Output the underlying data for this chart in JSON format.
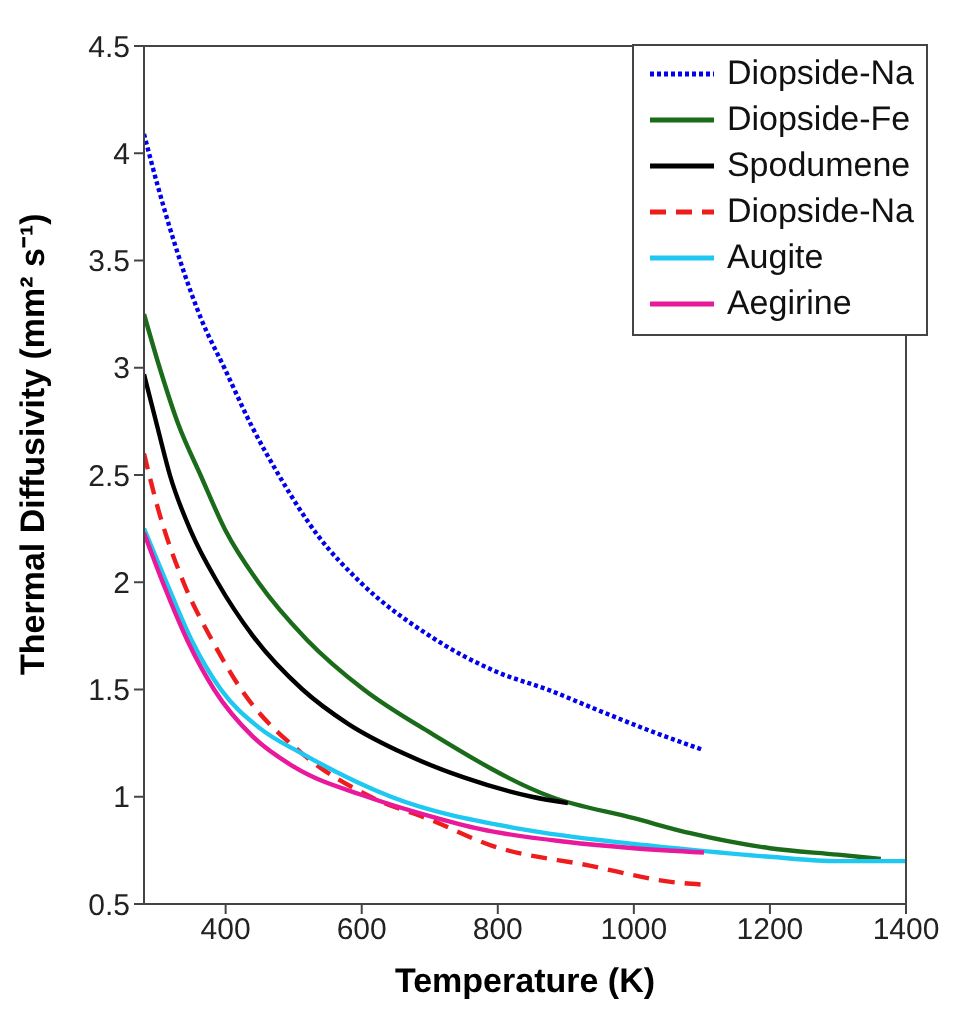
{
  "chart_data": {
    "type": "line",
    "xlabel": "Temperature (K)",
    "ylabel": "Thermal Diffusivity (mm² s⁻¹)",
    "xlim": [
      280,
      1400
    ],
    "xticks": [
      400,
      600,
      800,
      1000,
      1200,
      1400
    ],
    "ylim": [
      0.5,
      4.5
    ],
    "yticks": [
      0.5,
      1,
      1.5,
      2,
      2.5,
      3,
      3.5,
      4,
      4.5
    ],
    "grid": false,
    "legend": "top right",
    "marker": "none",
    "series": [
      {
        "name": "Diopside-Na",
        "color": "#0000ee",
        "line_style": "dotted",
        "x": [
          280,
          300,
          333,
          365,
          398,
          438,
          478,
          535,
          598,
          700,
          800,
          873,
          950,
          1030,
          1100
        ],
        "values": [
          4.09,
          3.85,
          3.5,
          3.22,
          3.0,
          2.73,
          2.5,
          2.22,
          2.0,
          1.75,
          1.58,
          1.5,
          1.4,
          1.3,
          1.22
        ]
      },
      {
        "name": "Diopside-Fe",
        "color": "#1a6b1a",
        "line_style": "solid",
        "x": [
          280,
          303,
          330,
          363,
          400,
          448,
          520,
          603,
          700,
          878,
          1000,
          1083,
          1200,
          1300,
          1363
        ],
        "values": [
          3.25,
          3.0,
          2.74,
          2.5,
          2.24,
          2.0,
          1.73,
          1.5,
          1.3,
          1.0,
          0.9,
          0.83,
          0.76,
          0.73,
          0.71
        ]
      },
      {
        "name": "Spodumene",
        "color": "#000000",
        "line_style": "solid",
        "x": [
          280,
          300,
          318,
          350,
          388,
          440,
          513,
          580,
          663,
          750,
          850,
          903
        ],
        "values": [
          2.97,
          2.72,
          2.5,
          2.23,
          2.0,
          1.75,
          1.5,
          1.34,
          1.2,
          1.09,
          1.0,
          0.97
        ]
      },
      {
        "name": "Diopside-Na",
        "color": "#ee1c1c",
        "line_style": "dashed",
        "x": [
          280,
          300,
          338,
          380,
          423,
          513,
          613,
          703,
          793,
          933,
          1063,
          1103
        ],
        "values": [
          2.6,
          2.35,
          2.0,
          1.73,
          1.5,
          1.2,
          1.0,
          0.89,
          0.77,
          0.68,
          0.6,
          0.59
        ]
      },
      {
        "name": "Augite",
        "color": "#1ec8f0",
        "line_style": "solid",
        "x": [
          280,
          313,
          350,
          393,
          450,
          513,
          643,
          833,
          1000,
          1093,
          1200,
          1300,
          1400
        ],
        "values": [
          2.25,
          2.0,
          1.73,
          1.5,
          1.32,
          1.2,
          1.0,
          0.85,
          0.78,
          0.75,
          0.72,
          0.7,
          0.7
        ]
      },
      {
        "name": "Aegirine",
        "color": "#e8199a",
        "line_style": "solid",
        "x": [
          280,
          310,
          345,
          383,
          440,
          500,
          608,
          700,
          773,
          900,
          1000,
          1103
        ],
        "values": [
          2.23,
          1.98,
          1.72,
          1.5,
          1.28,
          1.14,
          1.0,
          0.91,
          0.85,
          0.79,
          0.76,
          0.74
        ]
      }
    ]
  }
}
